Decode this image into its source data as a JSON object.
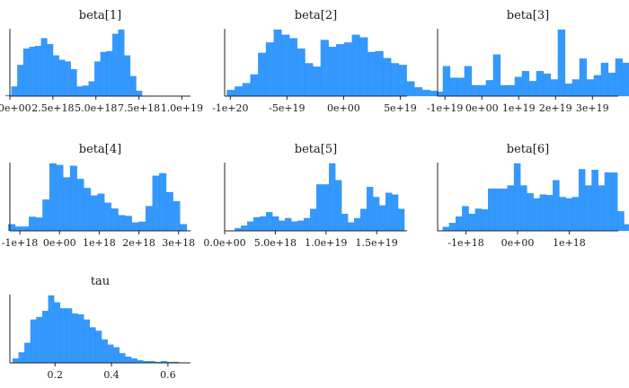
{
  "chart_data": [
    {
      "type": "bar",
      "title": "beta[1]",
      "x_range": [
        0,
        1.05e+19
      ],
      "xticks": [
        0,
        2.5e+18,
        5e+18,
        7.5e+18,
        1e+19
      ],
      "xtick_labels": [
        "0.0e+00",
        "2.5e+18",
        "5.0e+18",
        "7.5e+18",
        "1.0e+19"
      ],
      "bin_start": -2.5e+17,
      "bin_width": 3.45e+17,
      "values": [
        1,
        11,
        36,
        55,
        57,
        58,
        67,
        60,
        47,
        42,
        40,
        31,
        11,
        12,
        17,
        40,
        51,
        52,
        72,
        77,
        47,
        23,
        6
      ]
    },
    {
      "type": "bar",
      "title": "beta[2]",
      "x_range": [
        -1.05e+20,
        5.6e+19
      ],
      "xticks": [
        -1e+20,
        -5e+19,
        0,
        5e+19
      ],
      "xtick_labels": [
        "-1e+20",
        "-5e+19",
        "0e+00",
        "5e+19"
      ],
      "bin_start": -1.03e+20,
      "bin_width": 6.9e+18,
      "values": [
        7,
        11,
        15,
        25,
        50,
        62,
        77,
        71,
        67,
        55,
        38,
        34,
        65,
        57,
        60,
        62,
        71,
        68,
        51,
        52,
        44,
        38,
        36,
        17,
        10,
        7,
        6
      ]
    },
    {
      "type": "bar",
      "title": "beta[3]",
      "x_range": [
        -1.2e+19,
        3.7e+19
      ],
      "xticks": [
        -1e+19,
        0,
        1e+19,
        2e+19,
        3e+19
      ],
      "xtick_labels": [
        "-1e+19",
        "0e+00",
        "1e+19",
        "2e+19",
        "3e+19"
      ],
      "bin_start": -1.25e+19,
      "bin_width": 1.95e+18,
      "values": [
        5,
        36,
        22,
        22,
        36,
        13,
        13,
        19,
        50,
        13,
        13,
        23,
        30,
        18,
        30,
        27,
        20,
        80,
        15,
        20,
        45,
        20,
        25,
        40,
        28,
        45,
        40,
        7
      ]
    },
    {
      "type": "bar",
      "title": "beta[4]",
      "x_range": [
        -1.25e+18,
        3.3e+18
      ],
      "xticks": [
        -1e+18,
        0,
        1e+18,
        2e+18,
        3e+18
      ],
      "xtick_labels": [
        "-1e+18",
        "0e+00",
        "1e+18",
        "2e+18",
        "3e+18"
      ],
      "bin_start": -1.29e+18,
      "bin_width": 1.73e+17,
      "values": [
        8,
        5,
        5,
        17,
        16,
        38,
        82,
        80,
        65,
        79,
        63,
        52,
        43,
        45,
        34,
        27,
        19,
        18,
        10,
        11,
        30,
        67,
        70,
        47,
        36,
        8
      ]
    },
    {
      "type": "bar",
      "title": "beta[5]",
      "x_range": [
        0,
        1.8e+19
      ],
      "xticks": [
        0,
        5e+18,
        1e+19,
        1.5e+19
      ],
      "xtick_labels": [
        "0.0e+00",
        "5.0e+18",
        "1.0e+19",
        "1.5e+19"
      ],
      "bin_start": 1e+18,
      "bin_width": 6.2e+17,
      "values": [
        3,
        6,
        11,
        16,
        17,
        22,
        17,
        12,
        15,
        11,
        12,
        15,
        26,
        55,
        55,
        80,
        60,
        20,
        10,
        15,
        26,
        52,
        40,
        30,
        45,
        43,
        26
      ]
    },
    {
      "type": "bar",
      "title": "beta[6]",
      "x_range": [
        -1.55e+18,
        1.95e+18
      ],
      "xticks": [
        -1e+18,
        0,
        1e+18
      ],
      "xtick_labels": [
        "-1e+18",
        "0e+00",
        "1e+18"
      ],
      "bin_start": -1.45e+18,
      "bin_width": 1.255e+17,
      "values": [
        6,
        12,
        22,
        38,
        26,
        34,
        33,
        65,
        65,
        65,
        70,
        104,
        70,
        58,
        50,
        56,
        55,
        78,
        52,
        50,
        52,
        95,
        70,
        94,
        70,
        90,
        90,
        30,
        10
      ]
    },
    {
      "type": "bar",
      "title": "tau",
      "x_range": [
        0.04,
        0.68
      ],
      "xticks": [
        0.2,
        0.4,
        0.6
      ],
      "xtick_labels": [
        "0.2",
        "0.4",
        "0.6"
      ],
      "bin_start": 0.05,
      "bin_width": 0.021,
      "values": [
        5,
        12,
        23,
        50,
        53,
        60,
        78,
        70,
        63,
        63,
        57,
        56,
        50,
        41,
        37,
        27,
        21,
        18,
        11,
        7,
        5,
        3,
        2,
        2,
        1,
        2,
        1,
        1
      ]
    }
  ]
}
